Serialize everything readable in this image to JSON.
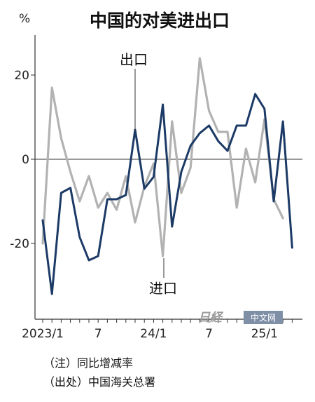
{
  "chart_data": {
    "type": "line",
    "title": "中国的对美进出口",
    "unit": "%",
    "ylim": [
      -38,
      30
    ],
    "y_ticks": [
      {
        "value": 20,
        "label": "20"
      },
      {
        "value": 0,
        "label": "0"
      },
      {
        "value": -20,
        "label": "-20"
      }
    ],
    "x_tick_labels": [
      "2023/1",
      "7",
      "24/1",
      "7",
      "25/1"
    ],
    "series": [
      {
        "name": "出口",
        "color": "#1c3a66",
        "values": [
          -14.5,
          -32,
          -8,
          -6.8,
          -18.5,
          -24,
          -23,
          -9.5,
          -9.5,
          -8.5,
          7,
          -7,
          -4.2,
          13,
          -16,
          -3,
          3.2,
          6.2,
          8,
          4.3,
          2,
          8,
          8,
          15.5,
          12,
          -10,
          9,
          -21
        ]
      },
      {
        "name": "进口",
        "color": "#b2b2b2",
        "values": [
          -20,
          17,
          5,
          -3,
          -10,
          -4,
          -11.5,
          -8,
          -12,
          -4,
          -15,
          -6.5,
          -1,
          -23,
          9,
          -8,
          -2,
          24,
          11.5,
          6.5,
          6.5,
          -11.5,
          2.5,
          -5.5,
          9.5,
          -9.5,
          -14
        ]
      }
    ],
    "annotations": {
      "export_label": "出口",
      "import_label": "进口"
    },
    "notes": [
      "（注）同比增减率",
      "（出处）中国海关总署"
    ],
    "watermark": {
      "logo_text": "日経",
      "badge": "中文网"
    }
  }
}
